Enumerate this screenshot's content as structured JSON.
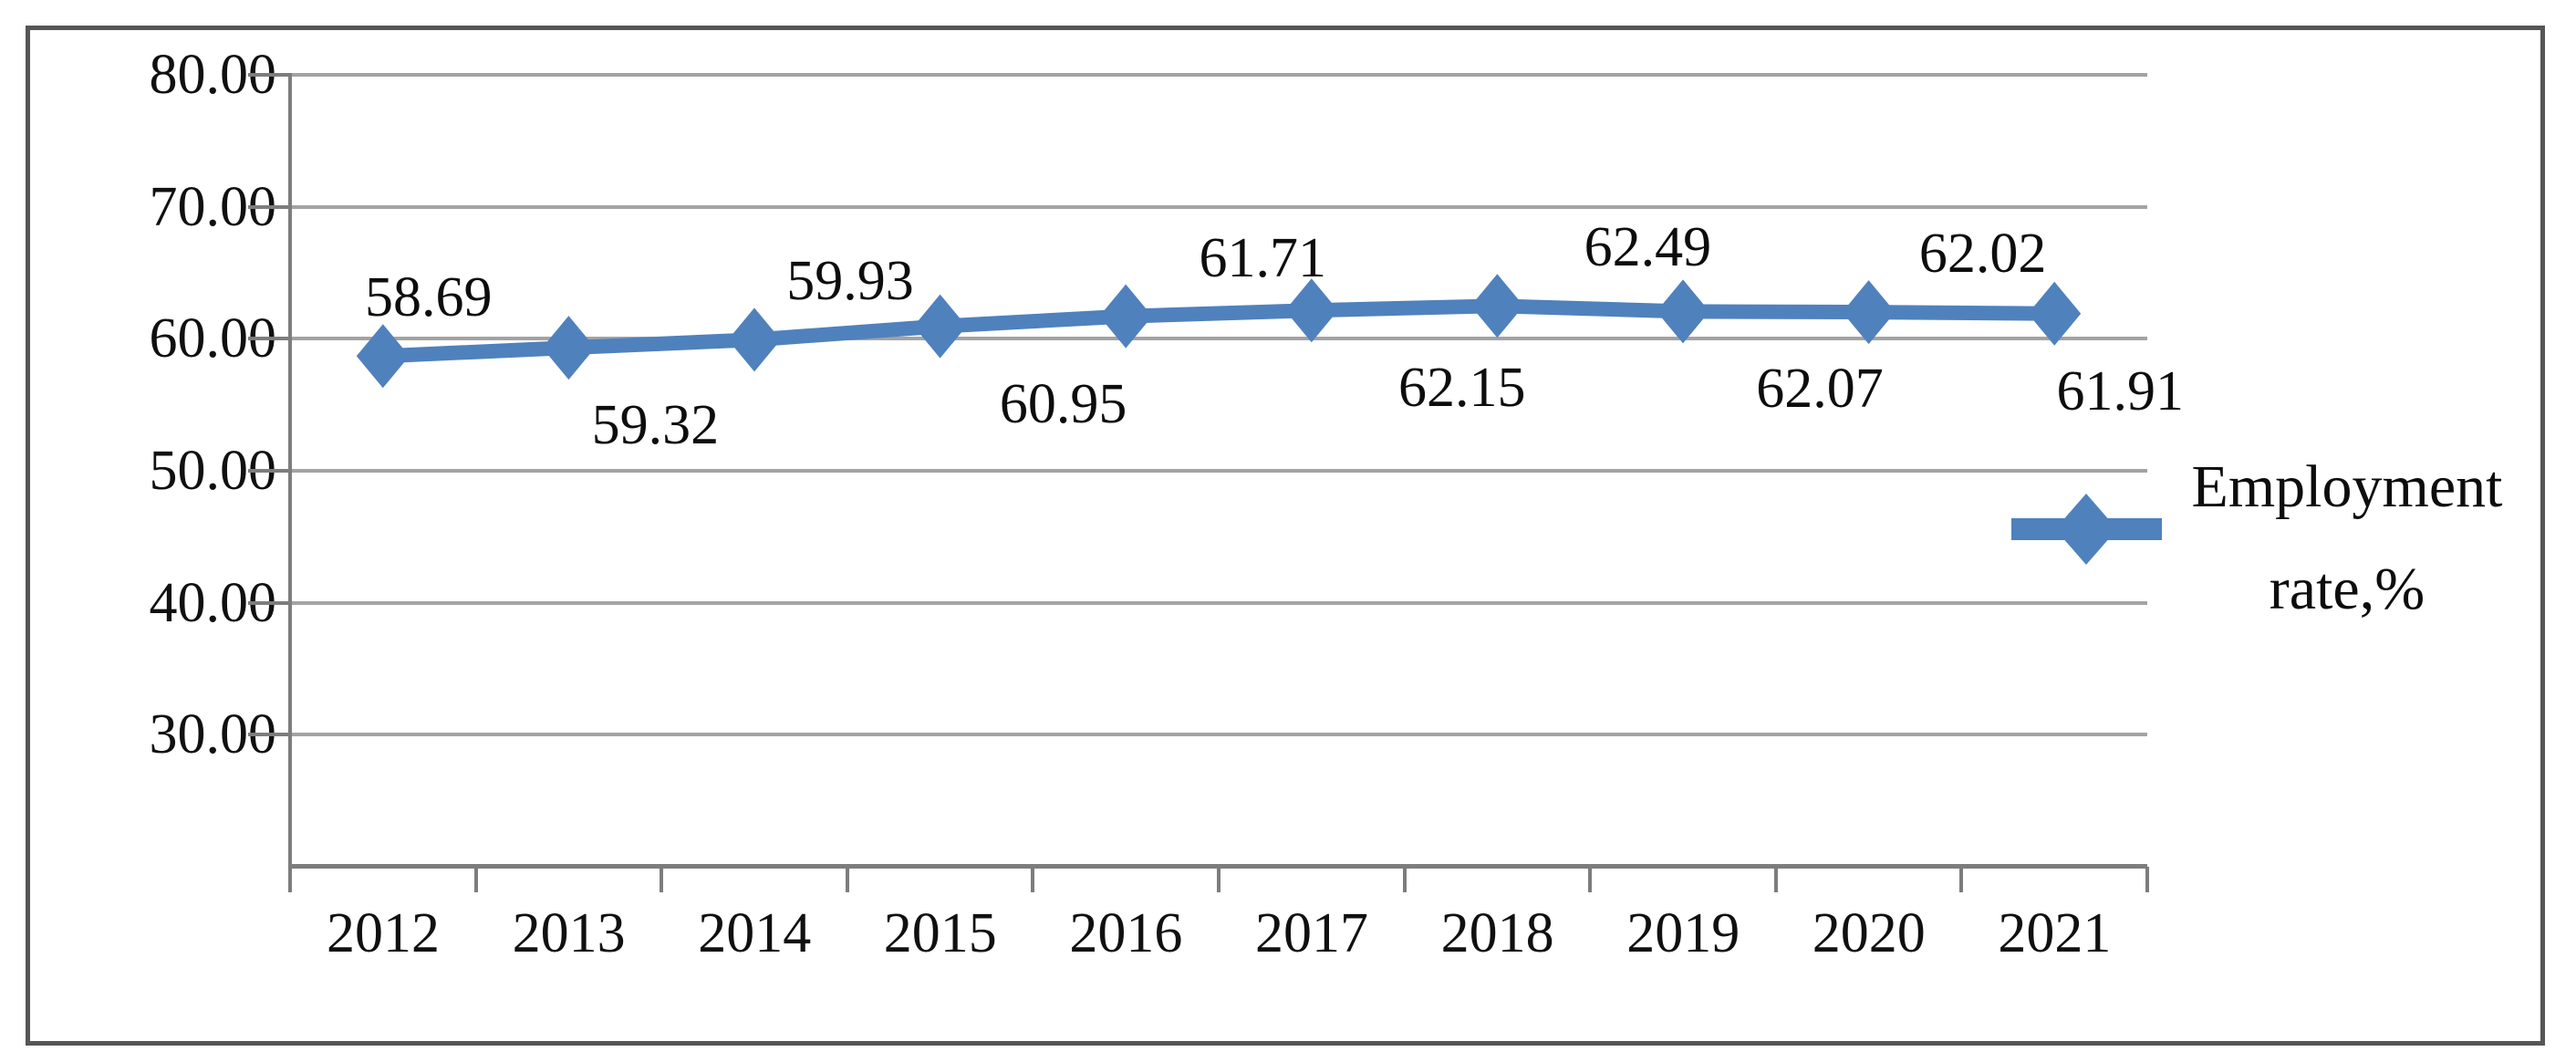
{
  "chart_data": {
    "type": "line",
    "title": "",
    "categories": [
      "2012",
      "2013",
      "2014",
      "2015",
      "2016",
      "2017",
      "2018",
      "2019",
      "2020",
      "2021"
    ],
    "series": [
      {
        "name": "Employment rate,%",
        "values": [
          58.69,
          59.32,
          59.93,
          60.95,
          61.71,
          62.15,
          62.49,
          62.07,
          62.02,
          61.91
        ]
      }
    ],
    "data_labels": [
      "58.69",
      "59.32",
      "59.93",
      "60.95",
      "61.71",
      "62.15",
      "62.49",
      "62.07",
      "62.02",
      "61.91"
    ],
    "data_label_positions": [
      "above",
      "below",
      "above",
      "below",
      "above",
      "below",
      "above",
      "below",
      "above",
      "below"
    ],
    "ylim": [
      20,
      80
    ],
    "ytick_labels": [
      "80.00",
      "70.00",
      "60.00",
      "50.00",
      "40.00",
      "30.00"
    ],
    "ytick_values": [
      80,
      70,
      60,
      50,
      40,
      30
    ],
    "xlabel": "",
    "ylabel": "",
    "grid": "horizontal",
    "legend_position": "right",
    "legend_label_lines": [
      "Employment",
      "rate,%"
    ]
  },
  "colors": {
    "series": "#4f81bd",
    "gridline": "#a3a3a3",
    "axis": "#7d7d7d",
    "frame_border": "#565656",
    "text": "#101010",
    "background": "#ffffff"
  }
}
